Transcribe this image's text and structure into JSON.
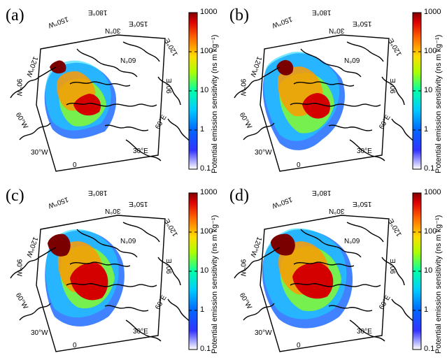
{
  "panels": [
    {
      "label": "(a)"
    },
    {
      "label": "(b)"
    },
    {
      "label": "(c)"
    },
    {
      "label": "(d)"
    }
  ],
  "colorbar": {
    "title": "Potential emission sensitivity  (ns m kg⁻¹)",
    "ticks": [
      "1000",
      "100",
      "10",
      "1",
      "0.1"
    ],
    "scale": "log",
    "range": [
      0.1,
      1000
    ],
    "colors": [
      "#ffffff",
      "#0000ff",
      "#00aaff",
      "#00ffaa",
      "#ffff00",
      "#ff8800",
      "#ff0000",
      "#800000"
    ]
  },
  "geo_labels": {
    "lon_30w": "30°W",
    "lon_0": "0",
    "lon_30e": "30°E",
    "lon_60e": "60°E",
    "lon_90e": "90°E",
    "lon_120e": "120°E",
    "lon_150e": "150°E",
    "lon_180e": "180°E",
    "lon_150w": "150°W",
    "lon_120w": "120°W",
    "lon_90w": "90°W",
    "lon_60w": "60°W",
    "lat_30n": "30°N",
    "lat_60n": "60°N"
  }
}
